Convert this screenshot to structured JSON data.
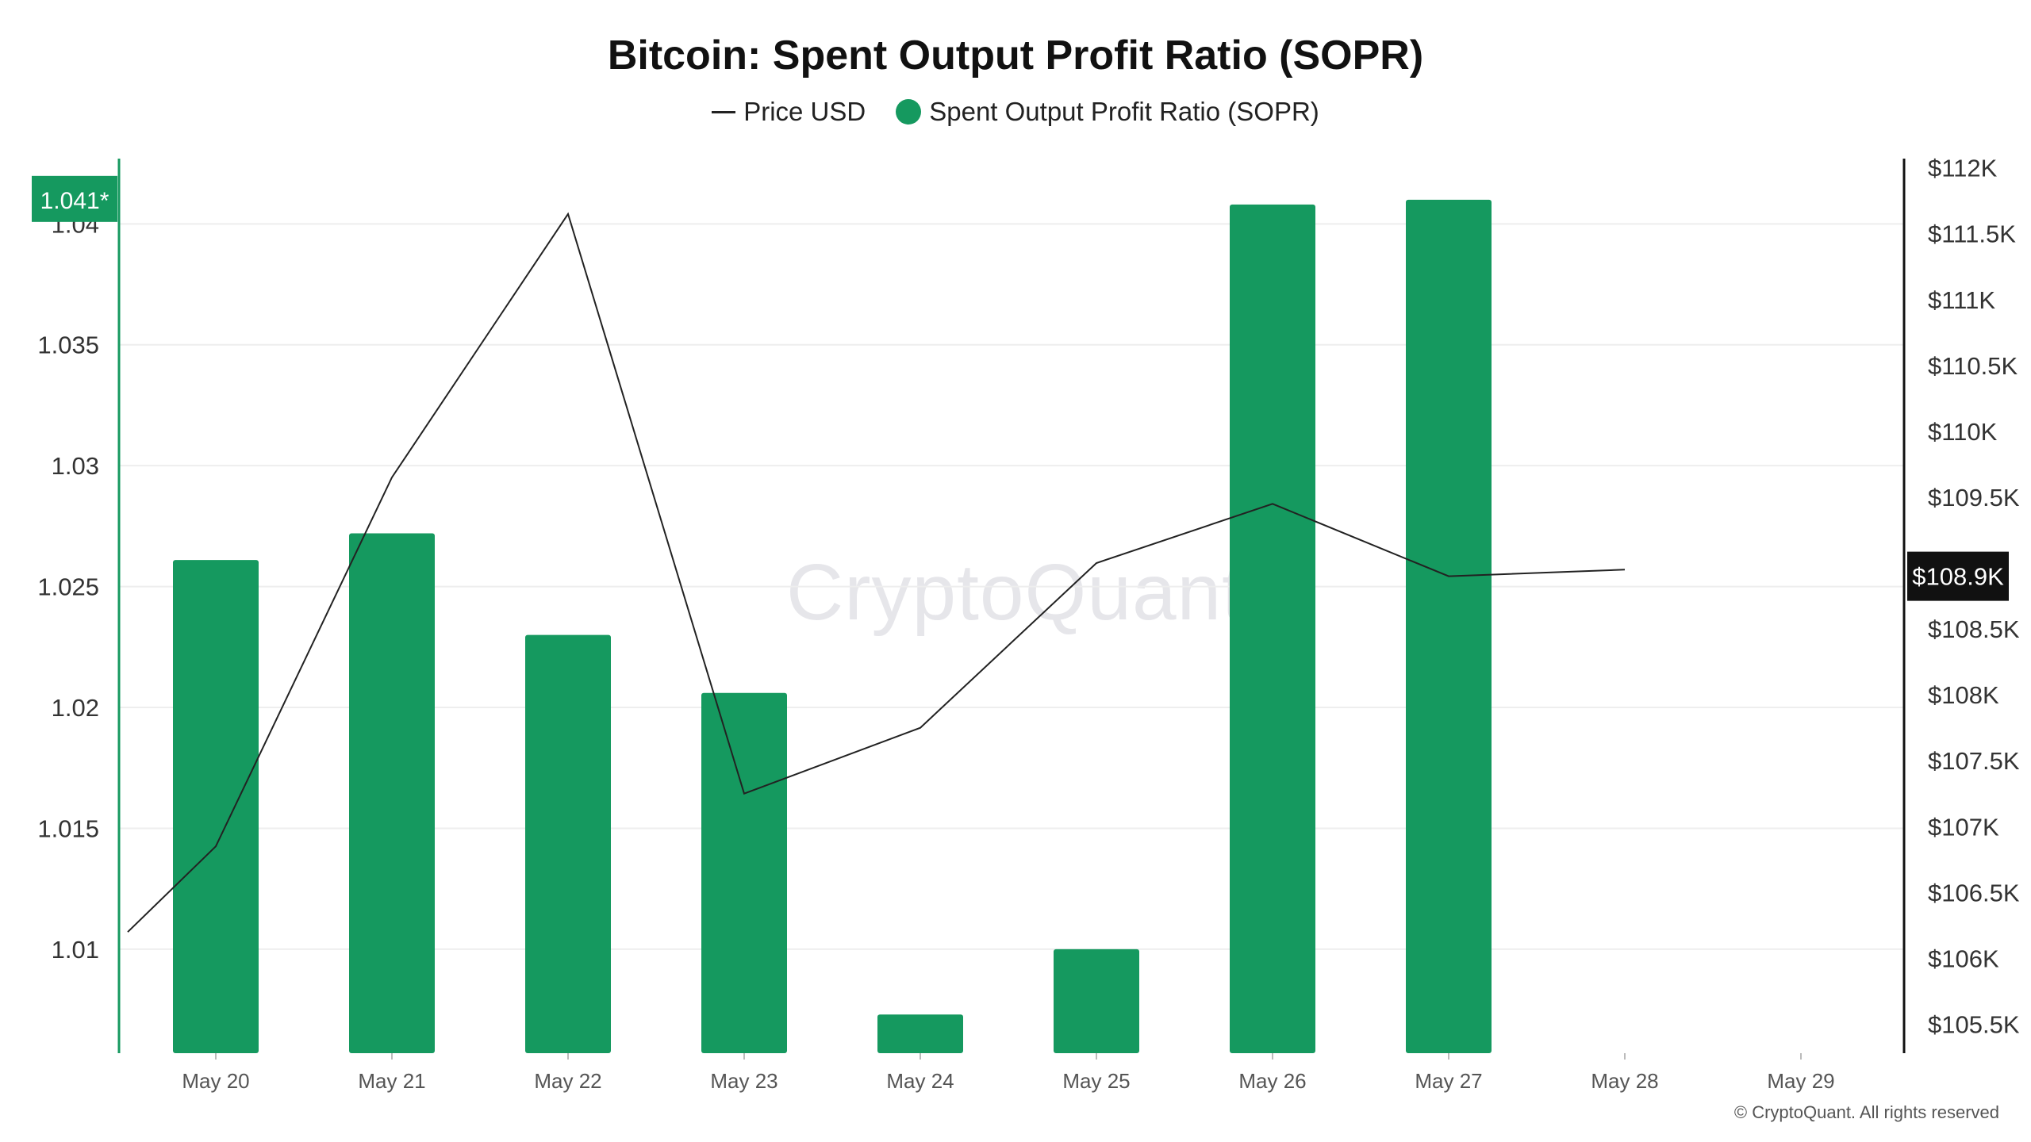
{
  "colors": {
    "bar": "#15995f",
    "line": "#222222",
    "left_axis": "#15995f",
    "right_axis": "#111111",
    "grid": "#eeeeee",
    "left_badge_bg": "#15995f",
    "right_badge_bg": "#111111",
    "badge_text": "#ffffff"
  },
  "footer": "© CryptoQuant. All rights reserved",
  "watermark": "CryptoQuant",
  "chart_data": {
    "type": "bar",
    "title": "Bitcoin: Spent Output Profit Ratio (SOPR)",
    "legend": {
      "placement": "top-center",
      "price_label": "Price USD",
      "sopr_label": "Spent Output Profit Ratio (SOPR)"
    },
    "categories": [
      "May 20",
      "May 21",
      "May 22",
      "May 23",
      "May 24",
      "May 25",
      "May 26",
      "May 27",
      "May 28",
      "May 29"
    ],
    "series": [
      {
        "name": "Spent Output Profit Ratio (SOPR)",
        "type": "bar",
        "axis": "left",
        "values": [
          1.0261,
          1.0272,
          1.023,
          1.0206,
          1.0073,
          1.01,
          1.0408,
          1.041,
          null,
          null
        ]
      },
      {
        "name": "Price USD",
        "type": "line",
        "axis": "right",
        "points": [
          {
            "x": "May 19.5",
            "y": 106200
          },
          {
            "x": "May 20",
            "y": 106850
          },
          {
            "x": "May 21",
            "y": 109650
          },
          {
            "x": "May 22",
            "y": 111650
          },
          {
            "x": "May 23",
            "y": 107250
          },
          {
            "x": "May 24",
            "y": 107750
          },
          {
            "x": "May 25",
            "y": 109000
          },
          {
            "x": "May 26",
            "y": 109450
          },
          {
            "x": "May 27",
            "y": 108900
          },
          {
            "x": "May 28",
            "y": 108950
          }
        ]
      }
    ],
    "y_left": {
      "ticks": [
        {
          "v": 1.01,
          "label": "1.01"
        },
        {
          "v": 1.015,
          "label": "1.015"
        },
        {
          "v": 1.02,
          "label": "1.02"
        },
        {
          "v": 1.025,
          "label": "1.025"
        },
        {
          "v": 1.03,
          "label": "1.03"
        },
        {
          "v": 1.035,
          "label": "1.035"
        },
        {
          "v": 1.04,
          "label": "1.04"
        }
      ],
      "ylim": [
        1.0057,
        1.0427
      ],
      "badge": {
        "value": 1.041,
        "label": "1.041*"
      }
    },
    "y_right": {
      "ticks": [
        {
          "v": 105500,
          "label": "$105.5K"
        },
        {
          "v": 106000,
          "label": "$106K"
        },
        {
          "v": 106500,
          "label": "$106.5K"
        },
        {
          "v": 107000,
          "label": "$107K"
        },
        {
          "v": 107500,
          "label": "$107.5K"
        },
        {
          "v": 108000,
          "label": "$108K"
        },
        {
          "v": 108500,
          "label": "$108.5K"
        },
        {
          "v": 109000,
          "label": "$109K"
        },
        {
          "v": 109500,
          "label": "$109.5K"
        },
        {
          "v": 110000,
          "label": "$110K"
        },
        {
          "v": 110500,
          "label": "$110.5K"
        },
        {
          "v": 111000,
          "label": "$111K"
        },
        {
          "v": 111500,
          "label": "$111.5K"
        },
        {
          "v": 112000,
          "label": "$112K"
        }
      ],
      "ylim": [
        105280,
        112070
      ],
      "badge": {
        "value": 108900,
        "label": "$108.9K"
      }
    },
    "grid": true
  }
}
